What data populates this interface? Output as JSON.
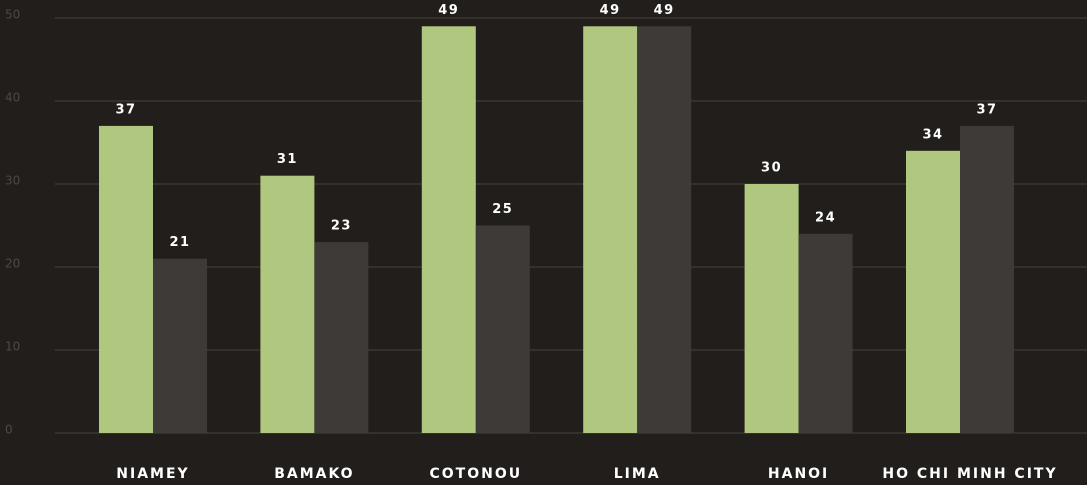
{
  "chart_data": {
    "type": "bar",
    "categories": [
      "NIAMEY",
      "BAMAKO",
      "COTONOU",
      "LIMA",
      "HANOI",
      "HO CHI MINH CITY"
    ],
    "series": [
      {
        "color": "#b0c77f",
        "values": [
          37,
          31,
          49,
          49,
          30,
          34
        ]
      },
      {
        "color": "#3e3a37",
        "values": [
          21,
          23,
          25,
          49,
          24,
          37
        ]
      }
    ],
    "ylim": [
      0,
      50
    ],
    "yticks": [
      0,
      10,
      20,
      30,
      40,
      50
    ],
    "grid": true
  }
}
